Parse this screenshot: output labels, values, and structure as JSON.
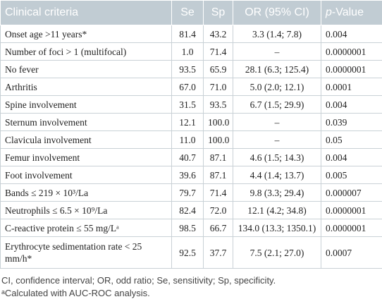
{
  "table": {
    "header": [
      "Clinical criteria",
      "Se",
      "Sp",
      "OR (95% CI)",
      "p-Value"
    ],
    "rows": [
      [
        "Onset age >11 years*",
        "81.4",
        "43.2",
        "3.3 (1.4; 7.8)",
        "0.004"
      ],
      [
        "Number of foci > 1 (multifocal)",
        "1.0",
        "71.4",
        "–",
        "0.0000001"
      ],
      [
        "No fever",
        "93.5",
        "65.9",
        "28.1 (6.3; 125.4)",
        "0.0000001"
      ],
      [
        "Arthritis",
        "67.0",
        "71.0",
        "5.0 (2.0; 12.1)",
        "0.0001"
      ],
      [
        "Spine involvement",
        "31.5",
        "93.5",
        "6.7 (1.5; 29.9)",
        "0.004"
      ],
      [
        "Sternum involvement",
        "12.1",
        "100.0",
        "–",
        "0.039"
      ],
      [
        "Clavicula involvement",
        "11.0",
        "100.0",
        "–",
        "0.05"
      ],
      [
        "Femur involvement",
        "40.7",
        "87.1",
        "4.6 (1.5; 14.3)",
        "0.004"
      ],
      [
        "Foot involvement",
        "39.6",
        "87.1",
        "4.4 (1.4; 13.7)",
        "0.005"
      ],
      [
        "Bands ≤ 219 × 10³/La",
        "79.7",
        "71.4",
        "9.8 (3.3; 29.4)",
        "0.000007"
      ],
      [
        "Neutrophils ≤ 6.5 × 10⁹/La",
        "82.4",
        "72.0",
        "12.1 (4.2; 34.8)",
        "0.0000001"
      ],
      [
        "C-reactive protein ≤ 55 mg/Lᵃ",
        "98.5",
        "66.7",
        "134.0 (13.3; 1350.1)",
        "0.0000001"
      ],
      [
        "Erythrocyte sedimentation rate < 25 mm/h*",
        "92.5",
        "37.7",
        "7.5 (2.1; 27.0)",
        "0.0007"
      ]
    ]
  },
  "footnotes": [
    "CI, confidence interval; OR, odd ratio; Se, sensitivity; Sp, specificity.",
    "ᵃCalculated with AUC-ROC analysis."
  ]
}
